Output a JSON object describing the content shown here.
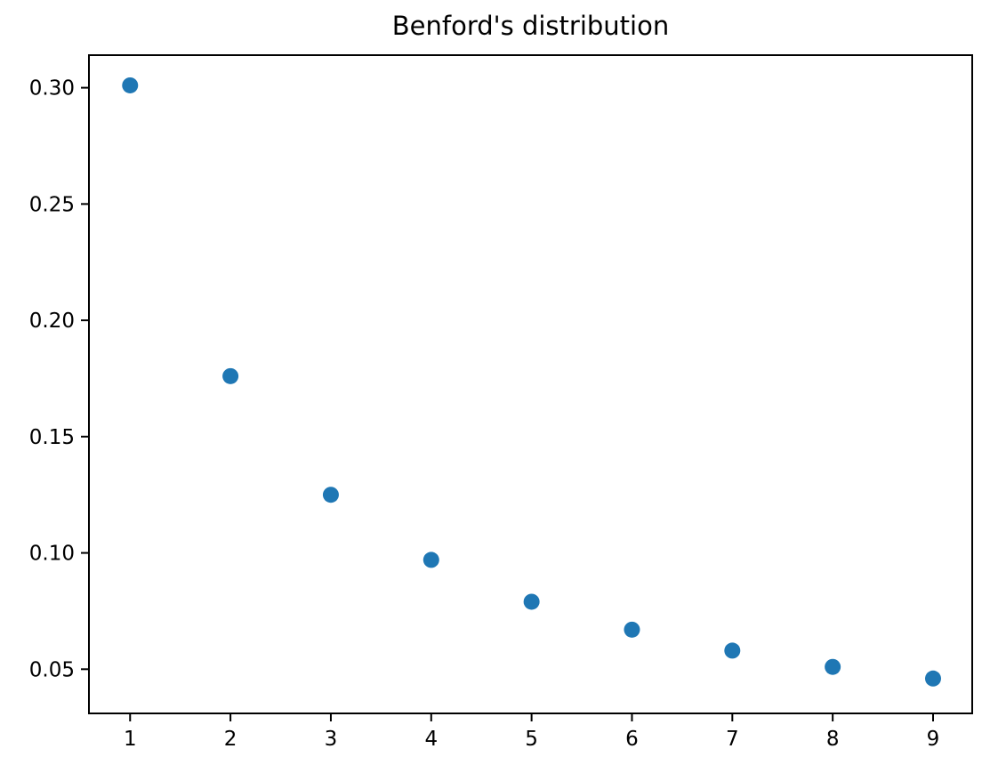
{
  "figure": {
    "background_color": "#ffffff",
    "text_color": "#000000",
    "marker_color": "#1f77b4"
  },
  "chart_data": {
    "type": "scatter",
    "title": "Benford's distribution",
    "xlabel": "",
    "ylabel": "",
    "x": [
      1,
      2,
      3,
      4,
      5,
      6,
      7,
      8,
      9
    ],
    "y": [
      0.301,
      0.176,
      0.125,
      0.097,
      0.079,
      0.067,
      0.058,
      0.051,
      0.046
    ],
    "xlim": [
      0.59,
      9.39
    ],
    "ylim": [
      0.031,
      0.314
    ],
    "xticks": [
      1,
      2,
      3,
      4,
      5,
      6,
      7,
      8,
      9
    ],
    "xtick_labels": [
      "1",
      "2",
      "3",
      "4",
      "5",
      "6",
      "7",
      "8",
      "9"
    ],
    "yticks": [
      0.05,
      0.1,
      0.15,
      0.2,
      0.25,
      0.3
    ],
    "ytick_labels": [
      "0.05",
      "0.10",
      "0.15",
      "0.20",
      "0.25",
      "0.30"
    ],
    "grid": false,
    "legend": null,
    "marker_color": "#1f77b4",
    "marker_radius": 9
  }
}
